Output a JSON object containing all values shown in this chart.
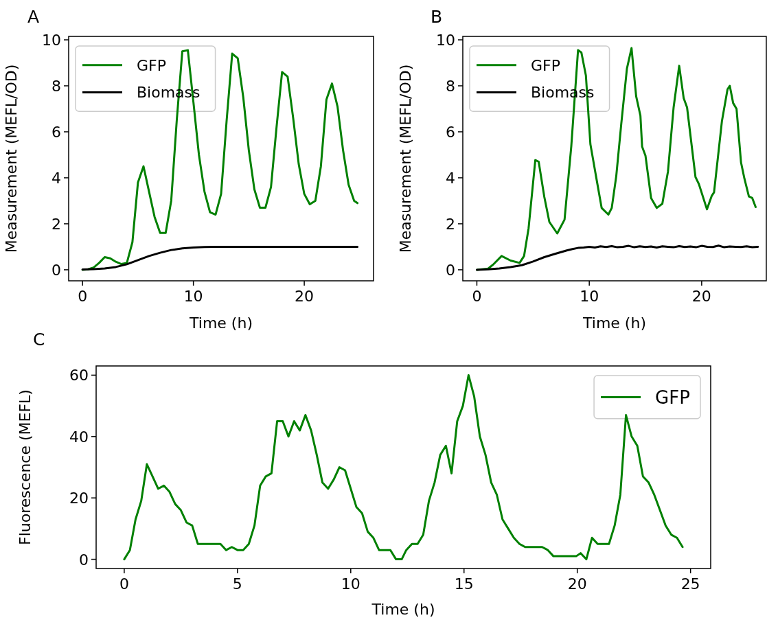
{
  "chart_data": [
    {
      "type": "line",
      "title": "A",
      "xlabel": "Time (h)",
      "ylabel": "Measurement (MEFL/OD)",
      "xlim": [
        -1.25,
        26.25
      ],
      "ylim": [
        -0.48,
        10.15
      ],
      "xticks": [
        0,
        10,
        20
      ],
      "yticks": [
        0,
        2,
        4,
        6,
        8,
        10
      ],
      "legend": "top left",
      "series": [
        {
          "name": "GFP",
          "color": "#008000",
          "x": [
            0,
            0.5,
            1,
            1.5,
            2,
            2.5,
            3,
            3.5,
            4,
            4.5,
            5,
            5.5,
            6,
            6.5,
            7,
            7.5,
            8,
            8.5,
            9,
            9.5,
            10,
            10.5,
            11,
            11.5,
            12,
            12.5,
            13,
            13.5,
            14,
            14.5,
            15,
            15.5,
            16,
            16.5,
            17,
            17.5,
            18,
            18.5,
            19,
            19.5,
            20,
            20.5,
            21,
            21.5,
            22,
            22.5,
            23,
            23.5,
            24,
            24.5,
            24.8
          ],
          "values": [
            0,
            0.02,
            0.1,
            0.3,
            0.55,
            0.5,
            0.35,
            0.25,
            0.3,
            1.2,
            3.8,
            4.5,
            3.4,
            2.3,
            1.6,
            1.6,
            3.0,
            6.5,
            9.5,
            9.55,
            7.3,
            5.0,
            3.4,
            2.5,
            2.4,
            3.3,
            6.5,
            9.4,
            9.2,
            7.5,
            5.2,
            3.5,
            2.7,
            2.7,
            3.6,
            6.2,
            8.6,
            8.4,
            6.6,
            4.6,
            3.3,
            2.85,
            3.0,
            4.5,
            7.4,
            8.1,
            7.1,
            5.2,
            3.7,
            3.0,
            2.9
          ]
        },
        {
          "name": "Biomass",
          "color": "#000000",
          "x": [
            0,
            1,
            2,
            3,
            4,
            5,
            6,
            7,
            8,
            9,
            10,
            11,
            12,
            24.8
          ],
          "values": [
            0.01,
            0.03,
            0.06,
            0.12,
            0.24,
            0.42,
            0.6,
            0.74,
            0.86,
            0.93,
            0.97,
            0.99,
            1.0,
            1.0
          ]
        }
      ]
    },
    {
      "type": "line",
      "title": "B",
      "xlabel": "Time (h)",
      "ylabel": "Measurement (MEFL/OD)",
      "xlim": [
        -1.25,
        25.75
      ],
      "ylim": [
        -0.48,
        10.15
      ],
      "xticks": [
        0,
        10,
        20
      ],
      "yticks": [
        0,
        2,
        4,
        6,
        8,
        10
      ],
      "legend": "top left",
      "series": [
        {
          "name": "GFP",
          "color": "#008000",
          "x": [
            0,
            1,
            1.5,
            2.2,
            3,
            3.8,
            4.2,
            4.6,
            5.2,
            5.5,
            6.0,
            6.45,
            7.15,
            7.8,
            8.4,
            9.0,
            9.3,
            9.7,
            10.1,
            10.6,
            11.1,
            11.7,
            12.0,
            12.4,
            12.85,
            13.35,
            13.76,
            14.17,
            14.55,
            14.7,
            15.0,
            15.5,
            16.0,
            16.5,
            17.0,
            17.5,
            18.0,
            18.4,
            18.7,
            19.45,
            19.75,
            20.47,
            20.9,
            21.1,
            21.8,
            22.3,
            22.5,
            22.8,
            23.1,
            23.5,
            23.8,
            24.2,
            24.5,
            24.8
          ],
          "values": [
            0,
            0.05,
            0.25,
            0.6,
            0.4,
            0.3,
            0.6,
            1.8,
            4.77,
            4.7,
            3.17,
            2.08,
            1.58,
            2.18,
            5.37,
            9.55,
            9.45,
            8.45,
            5.46,
            4.07,
            2.69,
            2.4,
            2.69,
            4.07,
            6.36,
            8.75,
            9.64,
            7.55,
            6.7,
            5.36,
            4.96,
            3.12,
            2.69,
            2.87,
            4.27,
            7.05,
            8.87,
            7.46,
            7.06,
            4.03,
            3.73,
            2.63,
            3.22,
            3.37,
            6.46,
            7.85,
            8.0,
            7.25,
            7.0,
            4.67,
            3.97,
            3.19,
            3.12,
            2.73
          ]
        },
        {
          "name": "Biomass",
          "color": "#000000",
          "x": [
            0,
            1,
            2,
            3,
            4,
            5,
            6,
            7,
            8,
            8.5,
            9,
            9.5,
            10,
            10.5,
            11,
            11.5,
            12,
            12.5,
            13,
            13.5,
            14,
            14.5,
            15,
            15.5,
            16,
            16.5,
            17,
            17.5,
            18,
            18.5,
            19,
            19.5,
            20,
            20.5,
            21,
            21.5,
            22,
            22.5,
            23,
            23.5,
            24,
            24.5,
            25
          ],
          "values": [
            0,
            0.02,
            0.06,
            0.12,
            0.2,
            0.36,
            0.55,
            0.7,
            0.84,
            0.9,
            0.95,
            0.97,
            1.0,
            0.97,
            1.02,
            0.99,
            1.03,
            0.98,
            1.0,
            1.04,
            0.98,
            1.02,
            0.99,
            1.01,
            0.97,
            1.02,
            1.0,
            0.98,
            1.03,
            0.99,
            1.01,
            0.98,
            1.04,
            1.0,
            0.99,
            1.05,
            0.98,
            1.01,
            1.0,
            0.99,
            1.02,
            0.98,
            1.0
          ]
        }
      ]
    },
    {
      "type": "line",
      "title": "C",
      "xlabel": "Time (h)",
      "ylabel": "Fluorescence (MEFL)",
      "xlim": [
        -1.24,
        25.89
      ],
      "ylim": [
        -3,
        63
      ],
      "xticks": [
        0,
        5,
        10,
        15,
        20,
        25
      ],
      "yticks": [
        0,
        20,
        40,
        60
      ],
      "legend": "top right",
      "series": [
        {
          "name": "GFP",
          "color": "#008000",
          "x": [
            0,
            0.25,
            0.5,
            0.75,
            1,
            1.25,
            1.5,
            1.75,
            2,
            2.25,
            2.5,
            2.75,
            3,
            3.25,
            3.5,
            3.75,
            4,
            4.25,
            4.5,
            4.75,
            5,
            5.25,
            5.5,
            5.75,
            6,
            6.25,
            6.5,
            6.75,
            7,
            7.25,
            7.5,
            7.75,
            8,
            8.25,
            8.5,
            8.75,
            9,
            9.25,
            9.5,
            9.75,
            10,
            10.25,
            10.5,
            10.75,
            11,
            11.25,
            11.5,
            11.75,
            12,
            12.25,
            12.45,
            12.7,
            12.95,
            13.2,
            13.45,
            13.7,
            13.95,
            14.2,
            14.45,
            14.7,
            14.95,
            15.2,
            15.45,
            15.7,
            15.95,
            16.2,
            16.45,
            16.7,
            16.95,
            17.2,
            17.45,
            17.7,
            17.95,
            18.2,
            18.45,
            18.7,
            18.95,
            19.2,
            19.45,
            19.7,
            19.95,
            20.15,
            20.4,
            20.65,
            20.9,
            21.15,
            21.4,
            21.65,
            21.9,
            22.15,
            22.4,
            22.65,
            22.9,
            23.15,
            23.4,
            23.65,
            23.9,
            24.15,
            24.4,
            24.65
          ],
          "values": [
            0,
            3,
            13,
            19,
            31,
            27,
            23,
            24,
            22,
            18,
            16,
            12,
            11,
            5,
            5,
            5,
            5,
            5,
            3,
            4,
            3,
            3,
            5,
            11,
            24,
            27,
            28,
            45,
            45,
            40,
            45,
            42,
            47,
            42,
            34,
            25,
            23,
            26,
            30,
            29,
            23,
            17,
            15,
            9,
            7,
            3,
            3,
            3,
            0,
            0,
            3,
            5,
            5,
            8,
            19,
            25,
            34,
            37,
            28,
            45,
            50,
            60,
            53,
            40,
            34,
            25,
            21,
            13,
            10,
            7,
            5,
            4,
            4,
            4,
            4,
            3,
            1,
            1,
            1,
            1,
            1,
            2,
            0,
            7,
            5,
            5,
            5,
            11,
            21,
            47,
            40,
            37,
            27,
            25,
            21,
            16,
            11,
            8,
            7,
            4
          ]
        }
      ]
    }
  ]
}
